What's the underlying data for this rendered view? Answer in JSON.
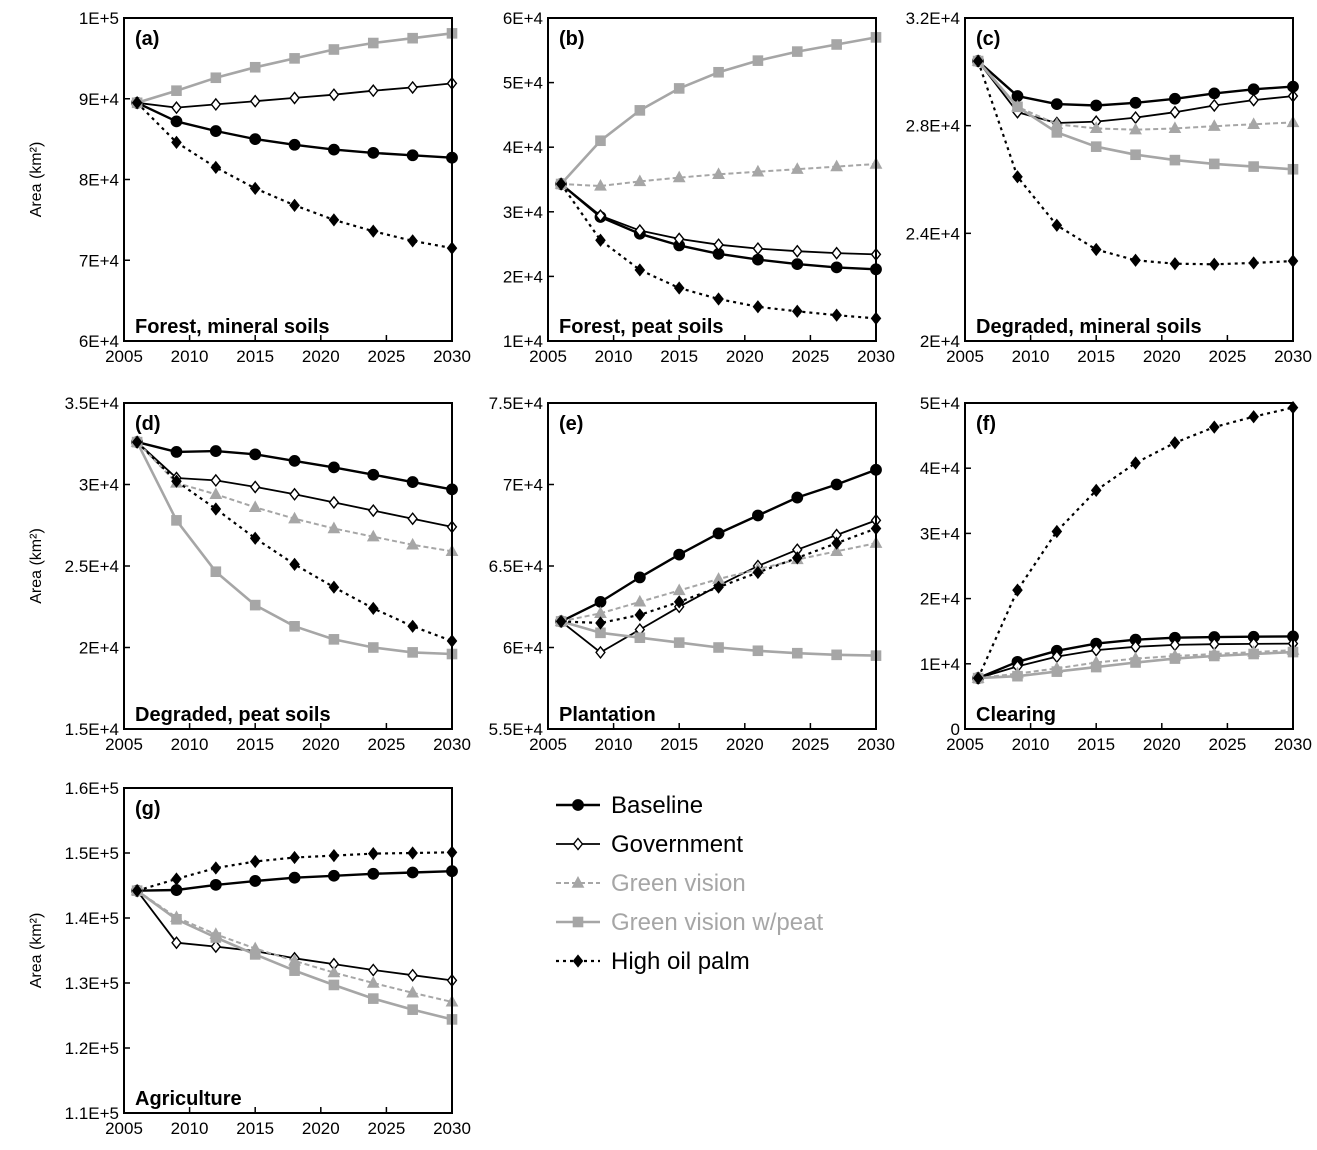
{
  "styles": {
    "Baseline": {
      "color": "#000000",
      "dash": "",
      "marker": "circle",
      "fill": "#000000",
      "width": 2.4
    },
    "Government": {
      "color": "#000000",
      "dash": "",
      "marker": "diamond",
      "fill": "#ffffff",
      "width": 1.8
    },
    "Green vision": {
      "color": "#a6a6a6",
      "dash": "5,3",
      "marker": "triangle",
      "fill": "#a6a6a6",
      "width": 2
    },
    "Green vision w/peat": {
      "color": "#a6a6a6",
      "dash": "",
      "marker": "square",
      "fill": "#a6a6a6",
      "width": 2.6
    },
    "High oil palm": {
      "color": "#000000",
      "dash": "3,4",
      "marker": "diamond",
      "fill": "#000000",
      "width": 2.2
    }
  },
  "legend": {
    "placement": "middle-right of bottom row",
    "entries": [
      "Baseline",
      "Government",
      "Green vision",
      "Green vision w/peat",
      "High oil palm"
    ]
  },
  "chart_data": [
    {
      "type": "line",
      "id": "a",
      "panel_label": "(a)",
      "title": "Forest, mineral soils",
      "ylabel": "Area (km²)",
      "xlim": [
        2005,
        2030
      ],
      "ylim": [
        60000,
        100000
      ],
      "xticks": [
        "2005",
        "2010",
        "2015",
        "2020",
        "2025",
        "2030"
      ],
      "yticks": [
        {
          "v": 60000,
          "label": "6E+4"
        },
        {
          "v": 70000,
          "label": "7E+4"
        },
        {
          "v": 80000,
          "label": "8E+4"
        },
        {
          "v": 90000,
          "label": "9E+4"
        },
        {
          "v": 100000,
          "label": "1E+5"
        }
      ],
      "x": [
        2006,
        2009,
        2012,
        2015,
        2018,
        2021,
        2024,
        2027,
        2030
      ],
      "series": [
        {
          "name": "Baseline",
          "values": [
            89500,
            87200,
            86000,
            85000,
            84300,
            83700,
            83300,
            83000,
            82700
          ]
        },
        {
          "name": "Government",
          "values": [
            89500,
            88900,
            89300,
            89700,
            90100,
            90500,
            91000,
            91400,
            91900
          ]
        },
        {
          "name": "Green vision w/peat",
          "values": [
            89500,
            91000,
            92600,
            93900,
            95000,
            96100,
            96900,
            97500,
            98100
          ]
        },
        {
          "name": "High oil palm",
          "values": [
            89500,
            84600,
            81500,
            78900,
            76800,
            75000,
            73600,
            72400,
            71500
          ]
        }
      ]
    },
    {
      "type": "line",
      "id": "b",
      "panel_label": "(b)",
      "title": "Forest, peat soils",
      "ylabel": "",
      "xlim": [
        2005,
        2030
      ],
      "ylim": [
        10000,
        60000
      ],
      "xticks": [
        "2005",
        "2010",
        "2015",
        "2020",
        "2025",
        "2030"
      ],
      "yticks": [
        {
          "v": 10000,
          "label": "1E+4"
        },
        {
          "v": 20000,
          "label": "2E+4"
        },
        {
          "v": 30000,
          "label": "3E+4"
        },
        {
          "v": 40000,
          "label": "4E+4"
        },
        {
          "v": 50000,
          "label": "5E+4"
        },
        {
          "v": 60000,
          "label": "6E+4"
        }
      ],
      "x": [
        2006,
        2009,
        2012,
        2015,
        2018,
        2021,
        2024,
        2027,
        2030
      ],
      "series": [
        {
          "name": "Baseline",
          "values": [
            34300,
            29200,
            26600,
            24800,
            23500,
            22600,
            21900,
            21400,
            21100
          ]
        },
        {
          "name": "Government",
          "values": [
            34300,
            29400,
            27100,
            25800,
            24900,
            24300,
            23900,
            23600,
            23400
          ]
        },
        {
          "name": "Green vision",
          "values": [
            34300,
            34000,
            34700,
            35300,
            35800,
            36200,
            36600,
            37000,
            37400
          ]
        },
        {
          "name": "Green vision w/peat",
          "values": [
            34300,
            41000,
            45700,
            49100,
            51600,
            53400,
            54800,
            55900,
            57000
          ]
        },
        {
          "name": "High oil palm",
          "values": [
            34300,
            25600,
            21000,
            18200,
            16500,
            15300,
            14600,
            14000,
            13500
          ]
        }
      ]
    },
    {
      "type": "line",
      "id": "c",
      "panel_label": "(c)",
      "title": "Degraded, mineral soils",
      "ylabel": "",
      "xlim": [
        2005,
        2030
      ],
      "ylim": [
        20000,
        32000
      ],
      "xticks": [
        "2005",
        "2010",
        "2015",
        "2020",
        "2025",
        "2030"
      ],
      "yticks": [
        {
          "v": 20000,
          "label": "2E+4"
        },
        {
          "v": 24000,
          "label": "2.4E+4"
        },
        {
          "v": 28000,
          "label": "2.8E+4"
        },
        {
          "v": 32000,
          "label": "3.2E+4"
        }
      ],
      "x": [
        2006,
        2009,
        2012,
        2015,
        2018,
        2021,
        2024,
        2027,
        2030
      ],
      "series": [
        {
          "name": "Baseline",
          "values": [
            30400,
            29100,
            28800,
            28750,
            28850,
            29000,
            29200,
            29350,
            29450
          ]
        },
        {
          "name": "Government",
          "values": [
            30400,
            28500,
            28100,
            28150,
            28300,
            28500,
            28750,
            28950,
            29100
          ]
        },
        {
          "name": "Green vision",
          "values": [
            30400,
            28700,
            28050,
            27900,
            27850,
            27900,
            27980,
            28050,
            28120
          ]
        },
        {
          "name": "Green vision w/peat",
          "values": [
            30400,
            28700,
            27750,
            27220,
            26920,
            26720,
            26580,
            26480,
            26380
          ]
        },
        {
          "name": "High oil palm",
          "values": [
            30400,
            26100,
            24300,
            23400,
            23000,
            22870,
            22850,
            22900,
            22970
          ]
        }
      ]
    },
    {
      "type": "line",
      "id": "d",
      "panel_label": "(d)",
      "title": "Degraded, peat soils",
      "ylabel": "Area (km²)",
      "xlim": [
        2005,
        2030
      ],
      "ylim": [
        15000,
        35000
      ],
      "xticks": [
        "2005",
        "2010",
        "2015",
        "2020",
        "2025",
        "2030"
      ],
      "yticks": [
        {
          "v": 15000,
          "label": "1.5E+4"
        },
        {
          "v": 20000,
          "label": "2E+4"
        },
        {
          "v": 25000,
          "label": "2.5E+4"
        },
        {
          "v": 30000,
          "label": "3E+4"
        },
        {
          "v": 35000,
          "label": "3.5E+4"
        }
      ],
      "x": [
        2006,
        2009,
        2012,
        2015,
        2018,
        2021,
        2024,
        2027,
        2030
      ],
      "series": [
        {
          "name": "Baseline",
          "values": [
            32600,
            32000,
            32050,
            31850,
            31450,
            31050,
            30600,
            30150,
            29700
          ]
        },
        {
          "name": "Government",
          "values": [
            32600,
            30400,
            30250,
            29850,
            29400,
            28900,
            28400,
            27900,
            27400
          ]
        },
        {
          "name": "Green vision",
          "values": [
            32600,
            30100,
            29400,
            28600,
            27900,
            27300,
            26800,
            26300,
            25900
          ]
        },
        {
          "name": "Green vision w/peat",
          "values": [
            32600,
            27800,
            24650,
            22600,
            21300,
            20500,
            20000,
            19700,
            19600
          ]
        },
        {
          "name": "High oil palm",
          "values": [
            32600,
            30200,
            28500,
            26700,
            25100,
            23700,
            22400,
            21300,
            20400
          ]
        }
      ]
    },
    {
      "type": "line",
      "id": "e",
      "panel_label": "(e)",
      "title": "Plantation",
      "ylabel": "",
      "xlim": [
        2005,
        2030
      ],
      "ylim": [
        55000,
        75000
      ],
      "xticks": [
        "2005",
        "2010",
        "2015",
        "2020",
        "2025",
        "2030"
      ],
      "yticks": [
        {
          "v": 55000,
          "label": "5.5E+4"
        },
        {
          "v": 60000,
          "label": "6E+4"
        },
        {
          "v": 65000,
          "label": "6.5E+4"
        },
        {
          "v": 70000,
          "label": "7E+4"
        },
        {
          "v": 75000,
          "label": "7.5E+4"
        }
      ],
      "x": [
        2006,
        2009,
        2012,
        2015,
        2018,
        2021,
        2024,
        2027,
        2030
      ],
      "series": [
        {
          "name": "Baseline",
          "values": [
            61600,
            62800,
            64300,
            65700,
            67000,
            68100,
            69200,
            70000,
            70900
          ]
        },
        {
          "name": "Government",
          "values": [
            61600,
            59700,
            61100,
            62500,
            63800,
            65000,
            66000,
            66900,
            67800
          ]
        },
        {
          "name": "Green vision",
          "values": [
            61600,
            62100,
            62800,
            63500,
            64200,
            64800,
            65400,
            65900,
            66400
          ]
        },
        {
          "name": "Green vision w/peat",
          "values": [
            61600,
            60900,
            60600,
            60300,
            60000,
            59800,
            59650,
            59550,
            59500
          ]
        },
        {
          "name": "High oil palm",
          "values": [
            61600,
            61500,
            62000,
            62800,
            63700,
            64600,
            65500,
            66400,
            67300
          ]
        }
      ]
    },
    {
      "type": "line",
      "id": "f",
      "panel_label": "(f)",
      "title": "Clearing",
      "ylabel": "",
      "xlim": [
        2005,
        2030
      ],
      "ylim": [
        0,
        50000
      ],
      "xticks": [
        "2005",
        "2010",
        "2015",
        "2020",
        "2025",
        "2030"
      ],
      "yticks": [
        {
          "v": 0,
          "label": "0"
        },
        {
          "v": 10000,
          "label": "1E+4"
        },
        {
          "v": 20000,
          "label": "2E+4"
        },
        {
          "v": 30000,
          "label": "3E+4"
        },
        {
          "v": 40000,
          "label": "4E+4"
        },
        {
          "v": 50000,
          "label": "5E+4"
        }
      ],
      "x": [
        2006,
        2009,
        2012,
        2015,
        2018,
        2021,
        2024,
        2027,
        2030
      ],
      "series": [
        {
          "name": "Baseline",
          "values": [
            7800,
            10300,
            12000,
            13100,
            13700,
            14000,
            14100,
            14150,
            14200
          ]
        },
        {
          "name": "Government",
          "values": [
            7800,
            9600,
            11100,
            12100,
            12600,
            12900,
            13000,
            13050,
            13100
          ]
        },
        {
          "name": "Green vision",
          "values": [
            7800,
            8500,
            9300,
            10200,
            10800,
            11200,
            11500,
            11800,
            12100
          ]
        },
        {
          "name": "Green vision w/peat",
          "values": [
            7800,
            8100,
            8800,
            9500,
            10200,
            10800,
            11200,
            11500,
            11800
          ]
        },
        {
          "name": "High oil palm",
          "values": [
            7800,
            21300,
            30300,
            36600,
            40800,
            43900,
            46300,
            47900,
            49300
          ]
        }
      ]
    },
    {
      "type": "line",
      "id": "g",
      "panel_label": "(g)",
      "title": "Agriculture",
      "ylabel": "Area (km²)",
      "xlim": [
        2005,
        2030
      ],
      "ylim": [
        110000,
        160000
      ],
      "xticks": [
        "2005",
        "2010",
        "2015",
        "2020",
        "2025",
        "2030"
      ],
      "yticks": [
        {
          "v": 110000,
          "label": "1.1E+5"
        },
        {
          "v": 120000,
          "label": "1.2E+5"
        },
        {
          "v": 130000,
          "label": "1.3E+5"
        },
        {
          "v": 140000,
          "label": "1.4E+5"
        },
        {
          "v": 150000,
          "label": "1.5E+5"
        },
        {
          "v": 160000,
          "label": "1.6E+5"
        }
      ],
      "x": [
        2006,
        2009,
        2012,
        2015,
        2018,
        2021,
        2024,
        2027,
        2030
      ],
      "series": [
        {
          "name": "Baseline",
          "values": [
            144200,
            144300,
            145100,
            145700,
            146200,
            146500,
            146800,
            147000,
            147200
          ]
        },
        {
          "name": "Government",
          "values": [
            144200,
            136200,
            135600,
            134900,
            133800,
            132900,
            132000,
            131200,
            130400
          ]
        },
        {
          "name": "Green vision",
          "values": [
            144200,
            140100,
            137500,
            135300,
            133400,
            131600,
            130000,
            128500,
            127100
          ]
        },
        {
          "name": "Green vision w/peat",
          "values": [
            144200,
            139800,
            137000,
            134400,
            131900,
            129700,
            127600,
            125900,
            124400
          ]
        },
        {
          "name": "High oil palm",
          "values": [
            144200,
            146000,
            147700,
            148700,
            149300,
            149600,
            149900,
            150000,
            150100
          ]
        }
      ]
    }
  ]
}
